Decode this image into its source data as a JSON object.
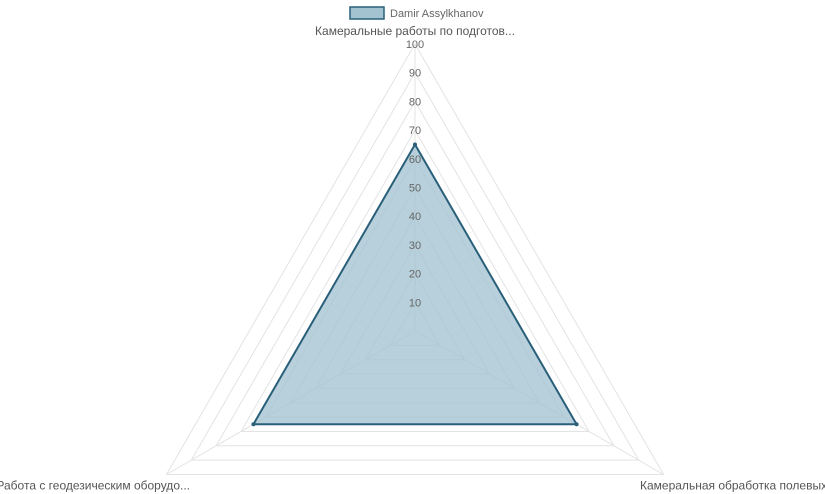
{
  "chart_data": {
    "type": "radar",
    "axes": [
      "Камеральные работы по подготов...",
      "Камеральная обработка полевых ...",
      "Работа с геодезическим оборудо..."
    ],
    "series": [
      {
        "name": "Damir Assylkhanov",
        "values": [
          65,
          65,
          65
        ],
        "fill_color": "#a3c3d1",
        "line_color": "#2a5f79"
      }
    ],
    "r_range": [
      0,
      100
    ],
    "ticks": [
      10,
      20,
      30,
      40,
      50,
      60,
      70,
      80,
      90,
      100
    ],
    "legend_position": "top"
  }
}
